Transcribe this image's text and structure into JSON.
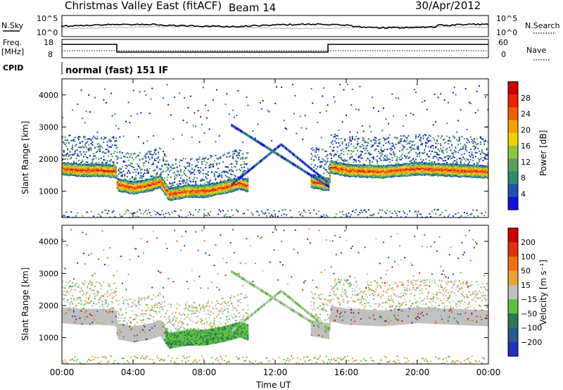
{
  "header": {
    "title": "Christmas Valley East (fitACF)",
    "beam": "Beam 14",
    "date": "30/Apr/2012"
  },
  "noise_panel": {
    "left_label": "N.Sky",
    "right_label": "N.Search",
    "ticks_left": [
      "10^5",
      "10^0"
    ],
    "ticks_right": [
      "10^5",
      "10^0"
    ]
  },
  "freq_panel": {
    "left_label_line1": "Freq.",
    "left_label_line2": "[MHz]",
    "right_label": "Nave",
    "ticks_left": [
      "18",
      "8"
    ],
    "ticks_right": [
      "60",
      "0"
    ]
  },
  "cpid": {
    "label": "CPID",
    "value": "normal (fast) 151 IF"
  },
  "chart_data": [
    {
      "type": "heatmap",
      "title": "",
      "xlabel": "Time UT",
      "ylabel": "Slant Range [km]",
      "x_ticks": [
        "00:00",
        "04:00",
        "08:00",
        "12:00",
        "16:00",
        "20:00",
        "00:00"
      ],
      "xlim": [
        0,
        24
      ],
      "ylim": [
        180,
        4500
      ],
      "y_ticks": [
        1000,
        2000,
        3000,
        4000
      ],
      "colorbar": {
        "label": "Power [dB]",
        "ticks": [
          "4",
          "8",
          "12",
          "16",
          "20",
          "24",
          "28"
        ],
        "colors": [
          "#1010e0",
          "#2050b0",
          "#2e8a6e",
          "#5aa05a",
          "#8cc63a",
          "#f0d000",
          "#f8a000",
          "#f06000",
          "#f02000",
          "#d00000"
        ]
      },
      "features": [
        {
          "name": "main-band",
          "time": [
            0,
            1,
            2,
            3,
            3.1,
            4,
            5,
            5.5,
            6,
            7,
            8,
            9,
            10,
            10.5,
            11,
            12,
            13,
            14,
            15,
            15.1,
            16,
            18,
            20,
            22,
            24
          ],
          "range": [
            1700,
            1650,
            1650,
            1620,
            1200,
            1100,
            1200,
            1300,
            900,
            1000,
            1000,
            1100,
            1250,
            1150,
            null,
            null,
            null,
            1300,
            1200,
            1750,
            1650,
            1600,
            1700,
            1650,
            1600
          ]
        }
      ]
    },
    {
      "type": "heatmap",
      "title": "",
      "xlabel": "Time UT",
      "ylabel": "Slant Range [km]",
      "x_ticks": [
        "00:00",
        "04:00",
        "08:00",
        "12:00",
        "16:00",
        "20:00",
        "00:00"
      ],
      "xlim": [
        0,
        24
      ],
      "ylim": [
        180,
        4500
      ],
      "y_ticks": [
        1000,
        2000,
        3000,
        4000
      ],
      "colorbar": {
        "label": "Velocity [m s⁻¹]",
        "ticks": [
          "200",
          "100",
          "50",
          "15",
          "−15",
          "−50",
          "−100",
          "−200"
        ],
        "colors": [
          "#2030c0",
          "#2a5a8a",
          "#2e7a4e",
          "#5cc040",
          "#c0c0c0",
          "#f0a030",
          "#f07010",
          "#e03010",
          "#d00000"
        ]
      }
    }
  ]
}
